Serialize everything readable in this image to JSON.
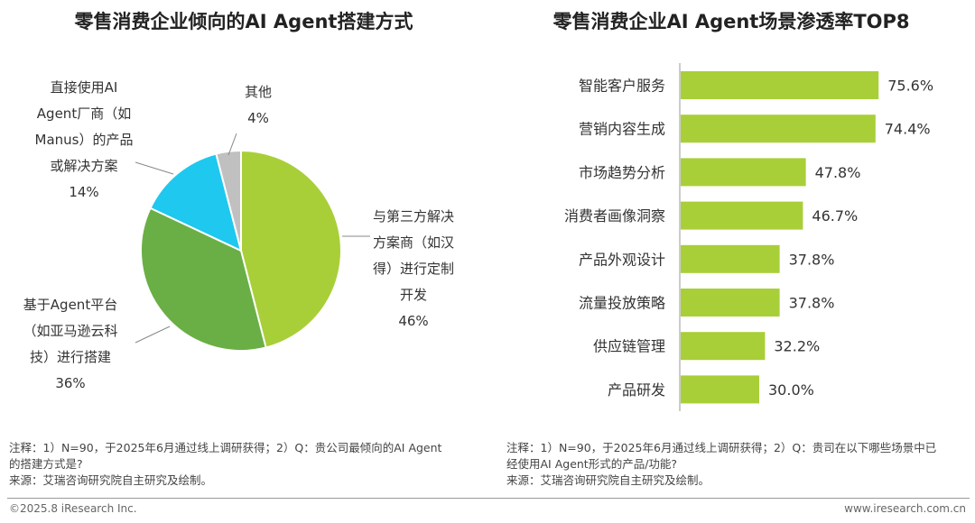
{
  "chart_data": [
    {
      "type": "pie",
      "title": "零售消费企业倾向的AI Agent搭建方式",
      "slices": [
        {
          "label_lines": [
            "与第三方解决",
            "方案商（如汉",
            "得）进行定制",
            "开发"
          ],
          "value": 46,
          "value_label": "46%",
          "color": "#a8cf38"
        },
        {
          "label_lines": [
            "基于Agent平台",
            "（如亚马逊云科",
            "技）进行搭建"
          ],
          "value": 36,
          "value_label": "36%",
          "color": "#6aaf45"
        },
        {
          "label_lines": [
            "直接使用AI",
            "Agent厂商（如",
            "Manus）的产品",
            "或解决方案"
          ],
          "value": 14,
          "value_label": "14%",
          "color": "#1ec8ee"
        },
        {
          "label_lines": [
            "其他"
          ],
          "value": 4,
          "value_label": "4%",
          "color": "#c0c0c0"
        }
      ]
    },
    {
      "type": "bar",
      "orientation": "horizontal",
      "title": "零售消费企业AI Agent场景渗透率TOP8",
      "categories": [
        "智能客户服务",
        "营销内容生成",
        "市场趋势分析",
        "消费者画像洞察",
        "产品外观设计",
        "流量投放策略",
        "供应链管理",
        "产品研发"
      ],
      "values": [
        75.6,
        74.4,
        47.8,
        46.7,
        37.8,
        37.8,
        32.2,
        30.0
      ],
      "value_labels": [
        "75.6%",
        "74.4%",
        "47.8%",
        "46.7%",
        "37.8%",
        "37.8%",
        "32.2%",
        "30.0%"
      ],
      "bar_color": "#a8cf38",
      "xlim": [
        0,
        100
      ]
    }
  ],
  "notes": {
    "left": [
      "注释：1）N=90，于2025年6月通过线上调研获得；2）Q：贵公司最倾向的AI Agent",
      "的搭建方式是?",
      "来源：艾瑞咨询研究院自主研究及绘制。"
    ],
    "right": [
      "注释：1）N=90，于2025年6月通过线上调研获得；2）Q：贵司在以下哪些场景中已",
      "经使用AI Agent形式的产品/功能?",
      "来源：艾瑞咨询研究院自主研究及绘制。"
    ]
  },
  "footer": {
    "copyright": "©2025.8 iResearch Inc.",
    "website": "www.iresearch.com.cn"
  }
}
